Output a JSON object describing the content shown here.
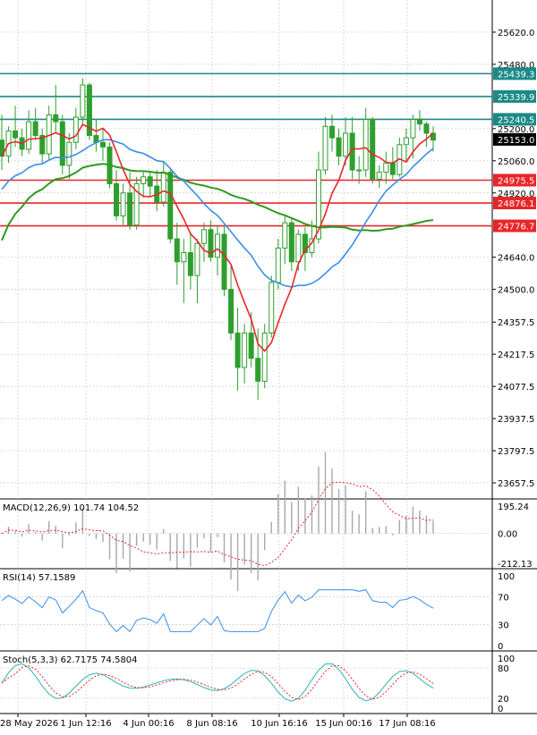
{
  "colors": {
    "background": "#ffffff",
    "grid": "#c8c8c8",
    "axis": "#000000",
    "candle": "#2e9e2e",
    "ma_red": "#e8262a",
    "ma_blue": "#3a8fe8",
    "ma_green": "#2f9a1f",
    "teal_level": "#1a8a86",
    "red_level": "#e8262a",
    "price_tag": "#000000",
    "macd_hist": "#a8a8a8",
    "macd_signal": "#e8262a",
    "rsi_line": "#3a8fe8",
    "stoch_main": "#2bb3b3",
    "stoch_signal": "#e8262a"
  },
  "chart_data": {
    "type": "candlestick",
    "main": {
      "ylim": [
        23587.5,
        25760.0
      ],
      "y_ticks": [
        "25620.0",
        "25480.0",
        "25200.0",
        "25060.0",
        "24920.0",
        "24640.0",
        "24500.0",
        "24357.5",
        "24217.5",
        "24077.5",
        "23937.5",
        "23797.5",
        "23657.5"
      ],
      "level_tags": {
        "teal": [
          "25439.3",
          "25339.9",
          "25240.5"
        ],
        "red": [
          "24975.5",
          "24876.1",
          "24776.7"
        ]
      },
      "current_price": "25153.0",
      "candles_approx": [
        [
          25150,
          25260,
          25020,
          25080
        ],
        [
          25080,
          25210,
          25050,
          25190
        ],
        [
          25190,
          25300,
          25120,
          25160
        ],
        [
          25160,
          25200,
          25080,
          25110
        ],
        [
          25110,
          25280,
          25090,
          25230
        ],
        [
          25230,
          25290,
          25150,
          25170
        ],
        [
          25170,
          25200,
          25050,
          25090
        ],
        [
          25090,
          25300,
          25060,
          25260
        ],
        [
          25260,
          25390,
          25180,
          25230
        ],
        [
          25230,
          25260,
          25000,
          25040
        ],
        [
          25040,
          25180,
          24980,
          25140
        ],
        [
          25140,
          25290,
          25110,
          25250
        ],
        [
          25250,
          25420,
          25210,
          25390
        ],
        [
          25390,
          25400,
          25150,
          25170
        ],
        [
          25170,
          25240,
          25100,
          25140
        ],
        [
          25140,
          25200,
          25060,
          25120
        ],
        [
          25120,
          25140,
          24940,
          24960
        ],
        [
          24960,
          25020,
          24800,
          24820
        ],
        [
          24820,
          24960,
          24780,
          24920
        ],
        [
          24920,
          25010,
          24760,
          24780
        ],
        [
          24780,
          24990,
          24760,
          24960
        ],
        [
          24960,
          25010,
          24900,
          24990
        ],
        [
          24990,
          25010,
          24900,
          24950
        ],
        [
          24950,
          25020,
          24840,
          24880
        ],
        [
          24880,
          25060,
          24860,
          25010
        ],
        [
          25010,
          25030,
          24700,
          24720
        ],
        [
          24720,
          24790,
          24520,
          24620
        ],
        [
          24620,
          24720,
          24440,
          24660
        ],
        [
          24660,
          24750,
          24500,
          24560
        ],
        [
          24560,
          24720,
          24440,
          24700
        ],
        [
          24700,
          24790,
          24620,
          24760
        ],
        [
          24760,
          24800,
          24620,
          24640
        ],
        [
          24640,
          24780,
          24560,
          24740
        ],
        [
          24740,
          24780,
          24470,
          24500
        ],
        [
          24500,
          24600,
          24280,
          24310
        ],
        [
          24310,
          24420,
          24060,
          24160
        ],
        [
          24160,
          24350,
          24090,
          24310
        ],
        [
          24310,
          24400,
          24160,
          24200
        ],
        [
          24200,
          24330,
          24020,
          24100
        ],
        [
          24100,
          24350,
          24070,
          24310
        ],
        [
          24310,
          24560,
          24290,
          24530
        ],
        [
          24530,
          24720,
          24500,
          24680
        ],
        [
          24680,
          24820,
          24610,
          24790
        ],
        [
          24790,
          24810,
          24580,
          24620
        ],
        [
          24620,
          24760,
          24580,
          24740
        ],
        [
          24740,
          24770,
          24580,
          24660
        ],
        [
          24660,
          24800,
          24640,
          24720
        ],
        [
          24720,
          25100,
          24700,
          25020
        ],
        [
          25020,
          25250,
          25000,
          25210
        ],
        [
          25210,
          25260,
          25100,
          25160
        ],
        [
          25160,
          25200,
          25040,
          25080
        ],
        [
          25080,
          25250,
          25040,
          25180
        ],
        [
          25180,
          25250,
          24980,
          25020
        ],
        [
          25020,
          25080,
          24960,
          25020
        ],
        [
          25020,
          25290,
          24990,
          25240
        ],
        [
          25240,
          25250,
          24960,
          24980
        ],
        [
          24980,
          25040,
          24940,
          25010
        ],
        [
          25010,
          25100,
          24960,
          25050
        ],
        [
          25050,
          25120,
          24980,
          25000
        ],
        [
          25000,
          25160,
          24990,
          25130
        ],
        [
          25130,
          25200,
          25060,
          25160
        ],
        [
          25160,
          25260,
          25070,
          25240
        ],
        [
          25240,
          25280,
          25190,
          25220
        ],
        [
          25220,
          25230,
          25120,
          25180
        ],
        [
          25180,
          25210,
          25100,
          25150
        ]
      ]
    },
    "macd": {
      "label": "MACD(12,26,9) 101.74 104.52",
      "y_ticks": [
        "195.24",
        "0.00",
        "-212.13"
      ],
      "ylim": [
        -212.13,
        195.24
      ]
    },
    "rsi": {
      "label": "RSI(14) 57.1589",
      "y_ticks": [
        "100",
        "70",
        "30",
        "0"
      ],
      "ylim": [
        0,
        100
      ]
    },
    "stoch": {
      "label": "Stoch(5,3,3) 62.7175 74.5804",
      "y_ticks": [
        "100",
        "80",
        "20",
        "0"
      ],
      "ylim": [
        0,
        100
      ]
    },
    "x_labels": [
      "28 May 2026",
      "1 Jun 12:16",
      "4 Jun 00:16",
      "8 Jun 08:16",
      "10 Jun 16:16",
      "15 Jun 00:16",
      "17 Jun 08:16"
    ]
  }
}
